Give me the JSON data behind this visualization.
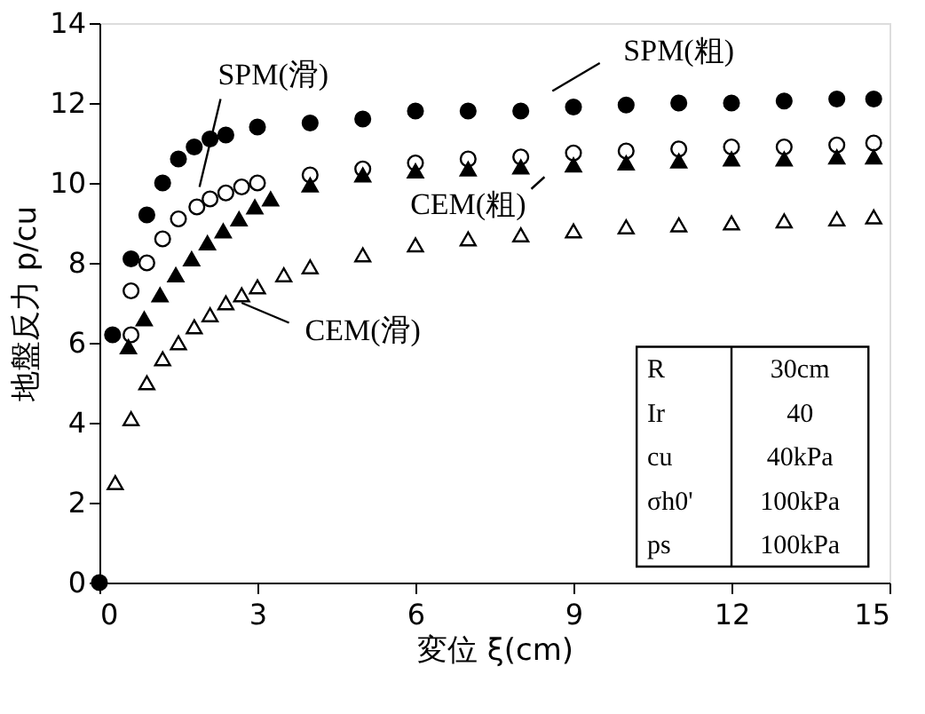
{
  "chart_data": {
    "type": "scatter",
    "xlabel": "変位 ξ(cm)",
    "ylabel": "地盤反力 p/cu",
    "xlim": [
      0,
      15
    ],
    "xticks": [
      0,
      3,
      6,
      9,
      12,
      15
    ],
    "ylim": [
      0,
      14
    ],
    "yticks": [
      0,
      2,
      4,
      6,
      8,
      10,
      12,
      14
    ],
    "grid": false,
    "series": [
      {
        "name": "SPM(粗)",
        "color": "#000000",
        "marker": "circle",
        "x": [
          0,
          0.25,
          0.6,
          0.9,
          1.2,
          1.5,
          1.8,
          2.1,
          2.4,
          3,
          4,
          5,
          6,
          7,
          8,
          9,
          10,
          11,
          12,
          13,
          14,
          14.7
        ],
        "values": [
          0,
          6.2,
          8.1,
          9.2,
          10.0,
          10.6,
          10.9,
          11.1,
          11.2,
          11.4,
          11.5,
          11.6,
          11.8,
          11.8,
          11.8,
          11.9,
          11.95,
          12.0,
          12.0,
          12.05,
          12.1,
          12.1
        ]
      },
      {
        "name": "SPM(滑)",
        "color": "#ffffff",
        "marker": "circle",
        "x": [
          0.6,
          0.6,
          0.9,
          1.2,
          1.5,
          1.85,
          2.1,
          2.4,
          2.7,
          3,
          4,
          5,
          6,
          7,
          8,
          9,
          10,
          11,
          12,
          13,
          14,
          14.7
        ],
        "values": [
          6.2,
          7.3,
          8.0,
          8.6,
          9.1,
          9.4,
          9.6,
          9.75,
          9.9,
          10.0,
          10.2,
          10.35,
          10.5,
          10.6,
          10.65,
          10.75,
          10.8,
          10.85,
          10.9,
          10.9,
          10.95,
          11.0
        ]
      },
      {
        "name": "CEM(粗)",
        "color": "#000000",
        "marker": "triangle",
        "x": [
          0.55,
          0.85,
          1.15,
          1.45,
          1.75,
          2.05,
          2.35,
          2.65,
          2.95,
          3.25,
          4,
          5,
          6,
          7,
          8,
          9,
          10,
          11,
          12,
          13,
          14,
          14.7
        ],
        "values": [
          5.9,
          6.6,
          7.2,
          7.7,
          8.1,
          8.5,
          8.8,
          9.1,
          9.4,
          9.6,
          9.95,
          10.2,
          10.3,
          10.35,
          10.4,
          10.45,
          10.5,
          10.55,
          10.6,
          10.6,
          10.65,
          10.65
        ]
      },
      {
        "name": "CEM(滑)",
        "color": "#ffffff",
        "marker": "triangle",
        "x": [
          0.3,
          0.6,
          0.9,
          1.2,
          1.5,
          1.8,
          2.1,
          2.4,
          2.7,
          3,
          3.5,
          4,
          5,
          6,
          7,
          8,
          9,
          10,
          11,
          12,
          13,
          14,
          14.7
        ],
        "values": [
          2.5,
          4.1,
          5.0,
          5.6,
          6.0,
          6.4,
          6.7,
          7.0,
          7.2,
          7.4,
          7.7,
          7.9,
          8.2,
          8.45,
          8.6,
          8.7,
          8.8,
          8.9,
          8.95,
          9.0,
          9.05,
          9.1,
          9.15
        ]
      }
    ],
    "annotations": [
      "R",
      "30cm",
      "Ir",
      "40",
      "cu",
      "40kPa",
      "σh0'",
      "100kPa",
      "ps",
      "100kPa"
    ]
  }
}
